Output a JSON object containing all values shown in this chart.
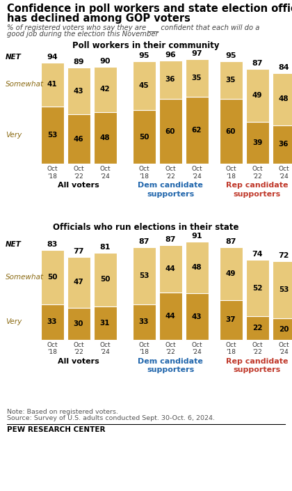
{
  "title": "Confidence in poll workers and state election officials\nhas declined among GOP voters",
  "subtitle": "% of registered voters who say they are ___ confident that each will do a\ngood job during the election this November",
  "section1_title": "Poll workers in their community",
  "section2_title": "Officials who run elections in their state",
  "note": "Note: Based on registered voters.\nSource: Survey of U.S. adults conducted Sept. 30-Oct. 6, 2024.",
  "source_bold": "PEW RESEARCH CENTER",
  "color_very": "#C9952A",
  "color_somewhat": "#E8C97A",
  "group_labels": [
    "All voters",
    "Dem candidate\nsupporters",
    "Rep candidate\nsupporters"
  ],
  "group_label_colors": [
    "#000000",
    "#2166AC",
    "#C0392B"
  ],
  "x_labels": [
    "Oct\n'18",
    "Oct\n'22",
    "Oct\n'24"
  ],
  "poll_workers": {
    "all_voters": {
      "net": [
        94,
        89,
        90
      ],
      "somewhat": [
        41,
        43,
        42
      ],
      "very": [
        53,
        46,
        48
      ]
    },
    "dem_supporters": {
      "net": [
        95,
        96,
        97
      ],
      "somewhat": [
        45,
        36,
        35
      ],
      "very": [
        50,
        60,
        62
      ]
    },
    "rep_supporters": {
      "net": [
        95,
        87,
        84
      ],
      "somewhat": [
        35,
        49,
        48
      ],
      "very": [
        60,
        39,
        36
      ]
    }
  },
  "officials": {
    "all_voters": {
      "net": [
        83,
        77,
        81
      ],
      "somewhat": [
        50,
        47,
        50
      ],
      "very": [
        33,
        30,
        31
      ]
    },
    "dem_supporters": {
      "net": [
        87,
        87,
        91
      ],
      "somewhat": [
        53,
        44,
        48
      ],
      "very": [
        33,
        44,
        43
      ]
    },
    "rep_supporters": {
      "net": [
        87,
        74,
        72
      ],
      "somewhat": [
        49,
        52,
        53
      ],
      "very": [
        37,
        22,
        20
      ]
    }
  }
}
